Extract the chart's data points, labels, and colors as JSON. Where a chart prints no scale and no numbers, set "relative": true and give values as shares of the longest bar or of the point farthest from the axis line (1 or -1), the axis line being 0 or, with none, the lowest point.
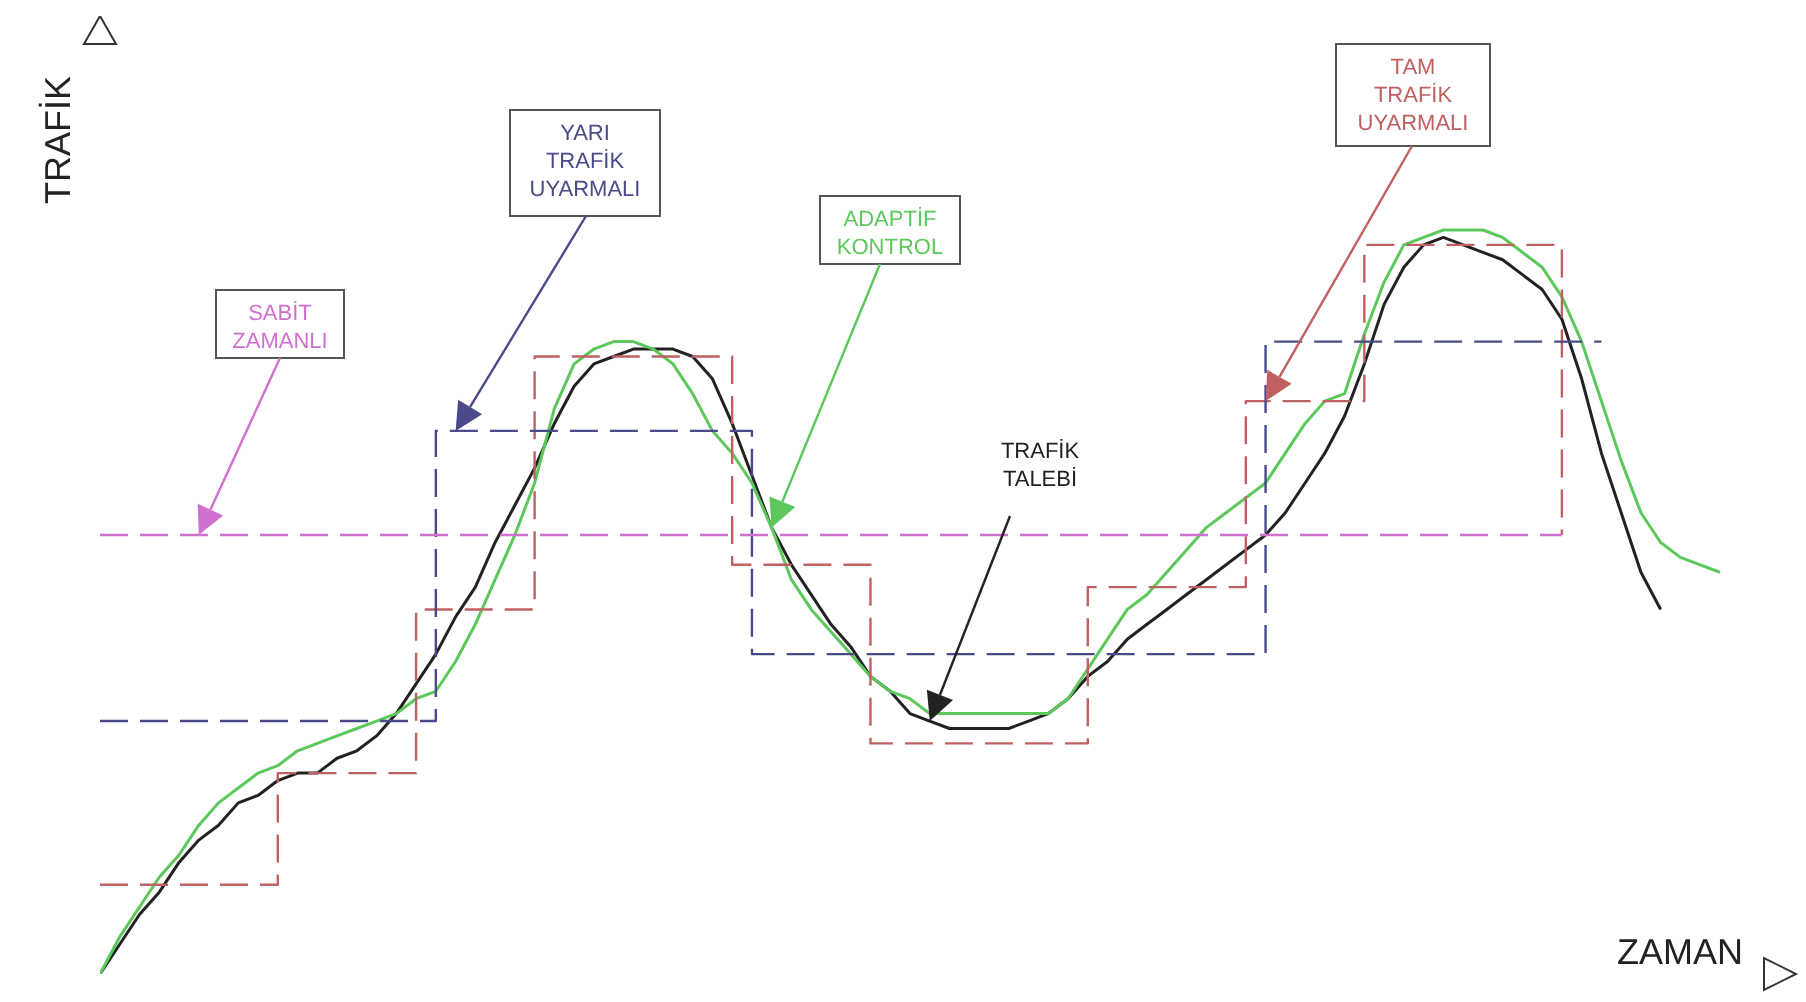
{
  "chart_data": {
    "type": "line",
    "relative": true,
    "xlabel": "ZAMAN",
    "ylabel": "TRAFİK",
    "categories": [
      null,
      null,
      null,
      null,
      null,
      null,
      null,
      null,
      null,
      null,
      null,
      null,
      null,
      null,
      null,
      null,
      null,
      null,
      null,
      null,
      null,
      null,
      null,
      null,
      null,
      null,
      null,
      null,
      null,
      null,
      null,
      null,
      null,
      null,
      null,
      null,
      null,
      null,
      null,
      null,
      null,
      null,
      null,
      null,
      null,
      null,
      null,
      null,
      null,
      null,
      null,
      null,
      null,
      null,
      null,
      null,
      null,
      null,
      null,
      null,
      null,
      null,
      null,
      null,
      null,
      null,
      null,
      null,
      null,
      null,
      null,
      null,
      null,
      null,
      null,
      null,
      null,
      null,
      null,
      null,
      null,
      null,
      null
    ],
    "series": [
      {
        "name": "TRAFİK TALEBİ",
        "type": "line",
        "line_style": "solid",
        "color": "#222222",
        "values": [
          0,
          0.04,
          0.08,
          0.11,
          0.15,
          0.18,
          0.2,
          0.23,
          0.24,
          0.26,
          0.27,
          0.27,
          0.29,
          0.3,
          0.32,
          0.35,
          0.39,
          0.43,
          0.48,
          0.52,
          0.58,
          0.63,
          0.68,
          0.74,
          0.79,
          0.82,
          0.83,
          0.84,
          0.84,
          0.84,
          0.83,
          0.8,
          0.74,
          0.67,
          0.6,
          0.55,
          0.51,
          0.47,
          0.44,
          0.4,
          0.38,
          0.35,
          0.34,
          0.33,
          0.33,
          0.33,
          0.33,
          0.34,
          0.35,
          0.37,
          0.4,
          0.42,
          0.45,
          0.47,
          0.49,
          0.51,
          0.53,
          0.55,
          0.57,
          0.59,
          0.62,
          0.66,
          0.7,
          0.75,
          0.82,
          0.9,
          0.95,
          0.98,
          0.99,
          0.98,
          0.97,
          0.96,
          0.94,
          0.92,
          0.88,
          0.8,
          0.7,
          0.62,
          0.54,
          0.49,
          null,
          null,
          null
        ]
      },
      {
        "name": "ADAPTİF KONTROL",
        "type": "line",
        "line_style": "solid",
        "color": "#5cc85c",
        "values": [
          0,
          0.05,
          0.09,
          0.13,
          0.16,
          0.2,
          0.23,
          0.25,
          0.27,
          0.28,
          0.3,
          0.31,
          0.32,
          0.33,
          0.34,
          0.35,
          0.37,
          0.38,
          0.42,
          0.47,
          0.53,
          0.59,
          0.66,
          0.76,
          0.82,
          0.84,
          0.85,
          0.85,
          0.84,
          0.82,
          0.78,
          0.73,
          0.7,
          0.66,
          0.6,
          0.53,
          0.49,
          0.46,
          0.43,
          0.4,
          0.38,
          0.37,
          0.35,
          0.35,
          0.35,
          0.35,
          0.35,
          0.35,
          0.35,
          0.37,
          0.41,
          0.45,
          0.49,
          0.51,
          0.54,
          0.57,
          0.6,
          0.62,
          0.64,
          0.66,
          0.7,
          0.74,
          0.77,
          0.78,
          0.86,
          0.93,
          0.98,
          0.99,
          1,
          1,
          1,
          0.99,
          0.97,
          0.95,
          0.91,
          0.85,
          0.77,
          0.69,
          0.62,
          0.58,
          0.56,
          0.55,
          0.54
        ]
      },
      {
        "name": "TAM TRAFİK UYARMALI",
        "type": "step",
        "line_style": "dashed",
        "color": "#c06060",
        "values": [
          0.12,
          0.12,
          0.12,
          0.12,
          0.12,
          0.12,
          0.12,
          0.12,
          0.12,
          0.27,
          0.27,
          0.27,
          0.27,
          0.27,
          0.27,
          0.27,
          0.49,
          0.49,
          0.49,
          0.49,
          0.49,
          0.49,
          0.83,
          0.83,
          0.83,
          0.83,
          0.83,
          0.83,
          0.83,
          0.83,
          0.83,
          0.83,
          0.55,
          0.55,
          0.55,
          0.55,
          0.55,
          0.55,
          0.55,
          0.31,
          0.31,
          0.31,
          0.31,
          0.31,
          0.31,
          0.31,
          0.31,
          0.31,
          0.31,
          0.31,
          0.52,
          0.52,
          0.52,
          0.52,
          0.52,
          0.52,
          0.52,
          0.52,
          0.77,
          0.77,
          0.77,
          0.77,
          0.77,
          0.77,
          0.98,
          0.98,
          0.98,
          0.98,
          0.98,
          0.98,
          0.98,
          0.98,
          0.98,
          0.98,
          0.59,
          null,
          null,
          null,
          null,
          null,
          null,
          null,
          null
        ]
      },
      {
        "name": "YARI TRAFİK UYARMALI",
        "type": "step",
        "line_style": "dashed",
        "color": "#4a4a8a",
        "values": [
          0.34,
          0.34,
          0.34,
          0.34,
          0.34,
          0.34,
          0.34,
          0.34,
          0.34,
          0.34,
          0.34,
          0.34,
          0.34,
          0.34,
          0.34,
          0.34,
          0.34,
          0.73,
          0.73,
          0.73,
          0.73,
          0.73,
          0.73,
          0.73,
          0.73,
          0.73,
          0.73,
          0.73,
          0.73,
          0.73,
          0.73,
          0.73,
          0.73,
          0.43,
          0.43,
          0.43,
          0.43,
          0.43,
          0.43,
          0.43,
          0.43,
          0.43,
          0.43,
          0.43,
          0.43,
          0.43,
          0.43,
          0.43,
          0.43,
          0.43,
          0.43,
          0.43,
          0.43,
          0.43,
          0.43,
          0.43,
          0.43,
          0.43,
          0.43,
          0.85,
          0.85,
          0.85,
          0.85,
          0.85,
          0.85,
          0.85,
          0.85,
          0.85,
          0.85,
          0.85,
          0.85,
          0.85,
          0.85,
          0.85,
          0.85,
          0.85,
          0.85,
          null,
          null,
          null,
          null,
          null,
          null
        ]
      },
      {
        "name": "SABİT ZAMANLI",
        "type": "line",
        "line_style": "dashed",
        "color": "#d070d0",
        "values": [
          0.59,
          0.59,
          0.59,
          0.59,
          0.59,
          0.59,
          0.59,
          0.59,
          0.59,
          0.59,
          0.59,
          0.59,
          0.59,
          0.59,
          0.59,
          0.59,
          0.59,
          0.59,
          0.59,
          0.59,
          0.59,
          0.59,
          0.59,
          0.59,
          0.59,
          0.59,
          0.59,
          0.59,
          0.59,
          0.59,
          0.59,
          0.59,
          0.59,
          0.59,
          0.59,
          0.59,
          0.59,
          0.59,
          0.59,
          0.59,
          0.59,
          0.59,
          0.59,
          0.59,
          0.59,
          0.59,
          0.59,
          0.59,
          0.59,
          0.59,
          0.59,
          0.59,
          0.59,
          0.59,
          0.59,
          0.59,
          0.59,
          0.59,
          0.59,
          0.59,
          0.59,
          0.59,
          0.59,
          0.59,
          0.59,
          0.59,
          0.59,
          0.59,
          0.59,
          0.59,
          0.59,
          0.59,
          0.59,
          0.59,
          0.59,
          null,
          null,
          null,
          null,
          null,
          null,
          null,
          null
        ]
      }
    ]
  }
}
